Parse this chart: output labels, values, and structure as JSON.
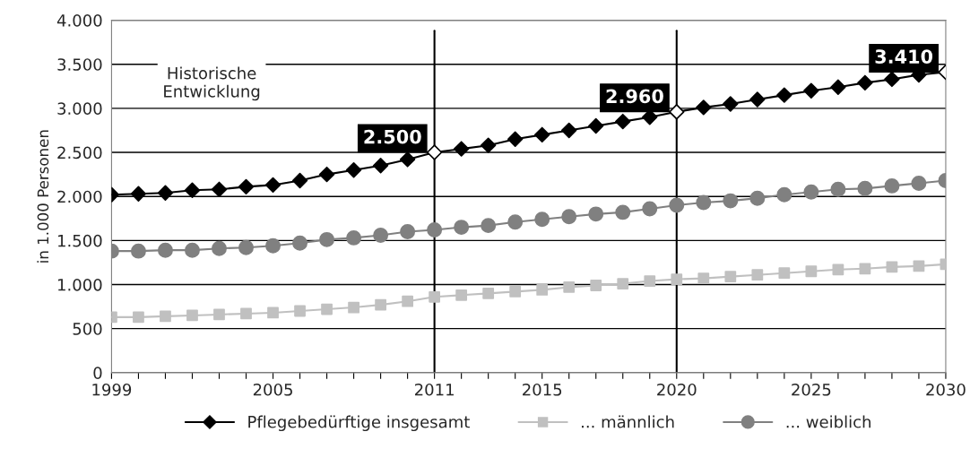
{
  "chart_data": {
    "type": "line",
    "ylabel": "in 1.000 Personen",
    "x": [
      1999,
      2000,
      2001,
      2002,
      2003,
      2004,
      2005,
      2006,
      2007,
      2008,
      2009,
      2010,
      2011,
      2012,
      2013,
      2014,
      2015,
      2016,
      2017,
      2018,
      2019,
      2020,
      2021,
      2022,
      2023,
      2024,
      2025,
      2026,
      2027,
      2028,
      2029,
      2030
    ],
    "series": [
      {
        "name": "Pflegebedürftige insgesamt",
        "color": "#000000",
        "marker": "diamond",
        "colors": [
          "#000000",
          "#000000",
          "#000000",
          "#000000",
          "#000000",
          "#000000",
          "#000000",
          "#000000",
          "#000000",
          "#000000",
          "#000000",
          "#000000",
          "#ffffff",
          "#000000",
          "#000000",
          "#000000",
          "#000000",
          "#000000",
          "#000000",
          "#000000",
          "#000000",
          "#ffffff",
          "#000000",
          "#000000",
          "#000000",
          "#000000",
          "#000000",
          "#000000",
          "#000000",
          "#000000",
          "#000000",
          "#ffffff"
        ],
        "values": [
          2020,
          2030,
          2040,
          2070,
          2080,
          2110,
          2130,
          2180,
          2250,
          2300,
          2350,
          2420,
          2500,
          2540,
          2580,
          2650,
          2700,
          2750,
          2800,
          2850,
          2900,
          2960,
          3010,
          3050,
          3100,
          3150,
          3200,
          3240,
          3290,
          3330,
          3380,
          3410
        ]
      },
      {
        "name": "... männlich",
        "color": "#c0c0c0",
        "marker": "square",
        "values": [
          630,
          630,
          640,
          650,
          660,
          670,
          680,
          700,
          720,
          740,
          770,
          810,
          860,
          880,
          900,
          920,
          940,
          970,
          990,
          1010,
          1040,
          1060,
          1070,
          1090,
          1110,
          1130,
          1150,
          1170,
          1180,
          1200,
          1210,
          1230
        ]
      },
      {
        "name": "... weiblich",
        "color": "#808080",
        "marker": "circle",
        "values": [
          1380,
          1380,
          1390,
          1390,
          1410,
          1420,
          1440,
          1470,
          1510,
          1530,
          1560,
          1600,
          1620,
          1650,
          1670,
          1710,
          1740,
          1770,
          1800,
          1820,
          1860,
          1900,
          1930,
          1950,
          1980,
          2020,
          2050,
          2080,
          2090,
          2120,
          2150,
          2180
        ]
      }
    ],
    "xlim": [
      1999,
      2030
    ],
    "xticks": [
      1999,
      {
        "value": 2000,
        "label": null
      },
      {
        "value": 2001,
        "label": null
      },
      {
        "value": 2002,
        "label": null
      },
      {
        "value": 2003,
        "label": null
      },
      {
        "value": 2004,
        "label": null
      },
      2005,
      {
        "value": 2006,
        "label": null
      },
      {
        "value": 2007,
        "label": null
      },
      {
        "value": 2008,
        "label": null
      },
      {
        "value": 2009,
        "label": null
      },
      {
        "value": 2010,
        "label": null
      },
      2011,
      {
        "value": 2012,
        "label": null
      },
      {
        "value": 2013,
        "label": null
      },
      {
        "value": 2014,
        "label": null
      },
      2015,
      {
        "value": 2016,
        "label": null
      },
      {
        "value": 2017,
        "label": null
      },
      {
        "value": 2018,
        "label": null
      },
      {
        "value": 2019,
        "label": null
      },
      2020,
      {
        "value": 2021,
        "label": null
      },
      {
        "value": 2022,
        "label": null
      },
      {
        "value": 2023,
        "label": null
      },
      {
        "value": 2024,
        "label": null
      },
      2025,
      {
        "value": 2026,
        "label": null
      },
      {
        "value": 2027,
        "label": null
      },
      {
        "value": 2028,
        "label": null
      },
      {
        "value": 2029,
        "label": null
      },
      2030
    ],
    "ylim": [
      0,
      4000
    ],
    "yticks": [
      0,
      500,
      {
        "value": 1000,
        "label": "1.000"
      },
      {
        "value": 1500,
        "label": "1.500"
      },
      {
        "value": 2000,
        "label": "2.000"
      },
      {
        "value": 2500,
        "label": "2.500"
      },
      {
        "value": 3000,
        "label": "3.000"
      },
      {
        "value": 3500,
        "label": "3.500"
      },
      {
        "value": 4000,
        "label": "4.000"
      }
    ],
    "grid": "y",
    "legend": "bottom",
    "ref_lines": [
      {
        "axis": "x",
        "value": 2011,
        "color": "#000000"
      },
      {
        "axis": "x",
        "value": 2020,
        "color": "#000000"
      }
    ],
    "annotations": [
      "Historische\nEntwicklung",
      {
        "text": "2.500",
        "x": 2011,
        "y": 2500
      },
      {
        "text": "2.960",
        "x": 2020,
        "y": 2960
      },
      {
        "text": "3.410",
        "x": 2030,
        "y": 3410
      }
    ]
  }
}
